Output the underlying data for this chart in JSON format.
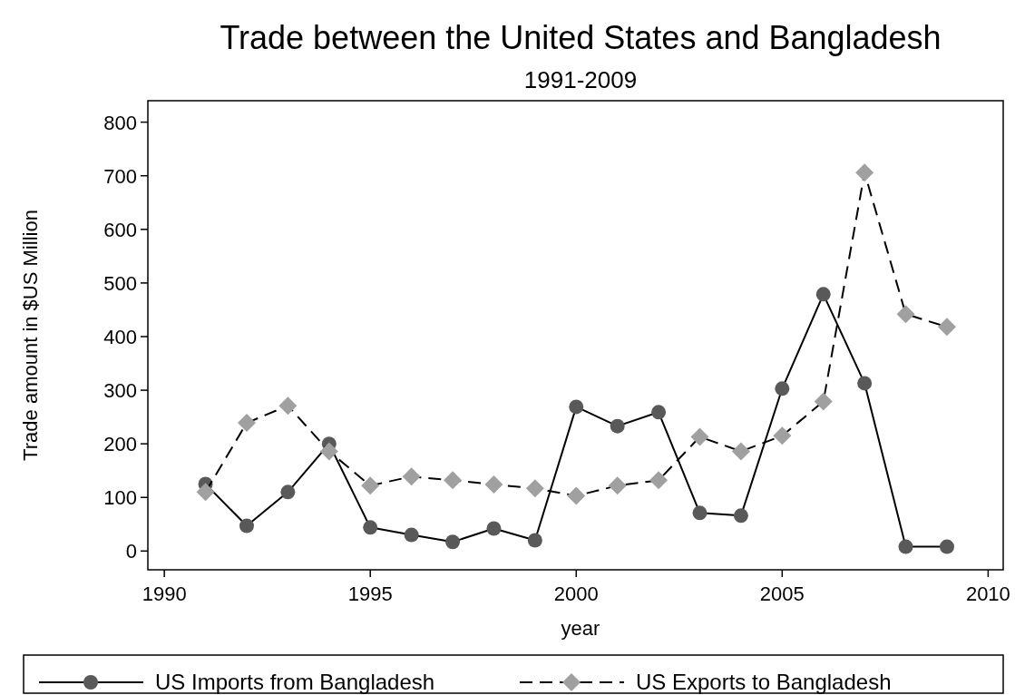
{
  "chart_data": {
    "type": "line",
    "title": "Trade between the United States and Bangladesh",
    "subtitle": "1991-2009",
    "xlabel": "year",
    "ylabel": "Trade amount in $US Million",
    "x": [
      1991,
      1992,
      1993,
      1994,
      1995,
      1996,
      1997,
      1998,
      1999,
      2000,
      2001,
      2002,
      2003,
      2004,
      2005,
      2006,
      2007,
      2008,
      2009
    ],
    "series": [
      {
        "name": "US Imports from Bangladesh",
        "color": "#595959",
        "marker": "circle",
        "line_style": "solid",
        "values": [
          125,
          47,
          110,
          200,
          44,
          30,
          17,
          42,
          20,
          269,
          233,
          259,
          71,
          66,
          303,
          479,
          313,
          8,
          8
        ]
      },
      {
        "name": "US Exports to Bangladesh",
        "color": "#a0a0a0",
        "marker": "diamond",
        "line_style": "dashed",
        "values": [
          110,
          239,
          271,
          186,
          122,
          139,
          132,
          124,
          117,
          103,
          122,
          132,
          213,
          186,
          215,
          279,
          706,
          442,
          418
        ]
      }
    ],
    "xlim": [
      1989.6,
      2010.3
    ],
    "xticks": [
      1990,
      1995,
      2000,
      2005,
      2010
    ],
    "ylim": [
      -35,
      840
    ],
    "yticks": [
      0,
      100,
      200,
      300,
      400,
      500,
      600,
      700,
      800
    ],
    "grid": false,
    "legend": "bottom"
  }
}
